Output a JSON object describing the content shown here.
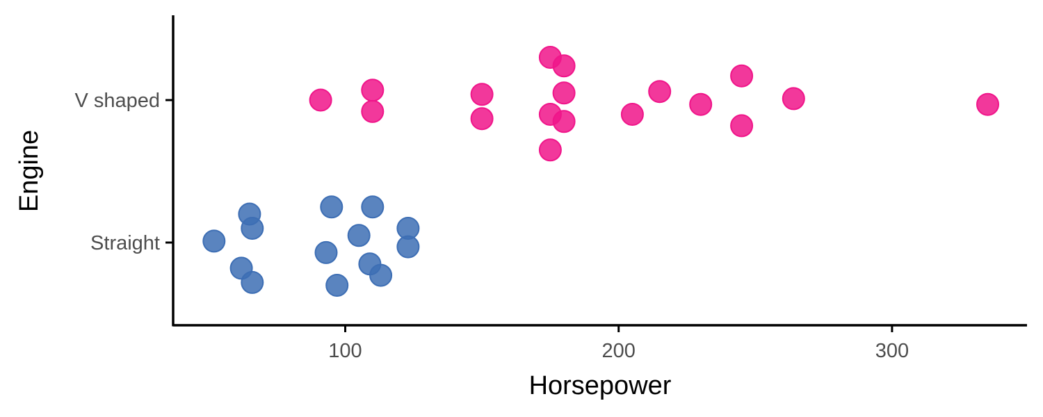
{
  "chart_data": {
    "type": "scatter",
    "title": "",
    "xlabel": "Horsepower",
    "ylabel": "Engine",
    "xlim": [
      40,
      355
    ],
    "x_ticks": [
      100,
      200,
      300
    ],
    "categories": [
      "Straight",
      "V shaped"
    ],
    "grid": false,
    "legend": "none",
    "series": [
      {
        "category": "V shaped",
        "color": "#F0158A",
        "points": [
          {
            "x": 91,
            "jitter": 0.0
          },
          {
            "x": 110,
            "jitter": 0.07
          },
          {
            "x": 110,
            "jitter": -0.08
          },
          {
            "x": 150,
            "jitter": 0.04
          },
          {
            "x": 150,
            "jitter": -0.13
          },
          {
            "x": 175,
            "jitter": 0.3
          },
          {
            "x": 175,
            "jitter": -0.1
          },
          {
            "x": 175,
            "jitter": -0.35
          },
          {
            "x": 180,
            "jitter": 0.24
          },
          {
            "x": 180,
            "jitter": 0.05
          },
          {
            "x": 180,
            "jitter": -0.15
          },
          {
            "x": 205,
            "jitter": -0.1
          },
          {
            "x": 215,
            "jitter": 0.06
          },
          {
            "x": 230,
            "jitter": -0.03
          },
          {
            "x": 245,
            "jitter": 0.17
          },
          {
            "x": 245,
            "jitter": -0.18
          },
          {
            "x": 264,
            "jitter": 0.01
          },
          {
            "x": 335,
            "jitter": -0.03
          }
        ]
      },
      {
        "category": "Straight",
        "color": "#3D6EB4",
        "points": [
          {
            "x": 52,
            "jitter": 0.01
          },
          {
            "x": 62,
            "jitter": -0.18
          },
          {
            "x": 65,
            "jitter": 0.2
          },
          {
            "x": 66,
            "jitter": 0.1
          },
          {
            "x": 66,
            "jitter": -0.28
          },
          {
            "x": 93,
            "jitter": -0.07
          },
          {
            "x": 95,
            "jitter": 0.25
          },
          {
            "x": 97,
            "jitter": -0.3
          },
          {
            "x": 105,
            "jitter": 0.05
          },
          {
            "x": 109,
            "jitter": -0.15
          },
          {
            "x": 110,
            "jitter": 0.25
          },
          {
            "x": 113,
            "jitter": -0.23
          },
          {
            "x": 123,
            "jitter": 0.1
          },
          {
            "x": 123,
            "jitter": -0.03
          }
        ]
      }
    ]
  }
}
